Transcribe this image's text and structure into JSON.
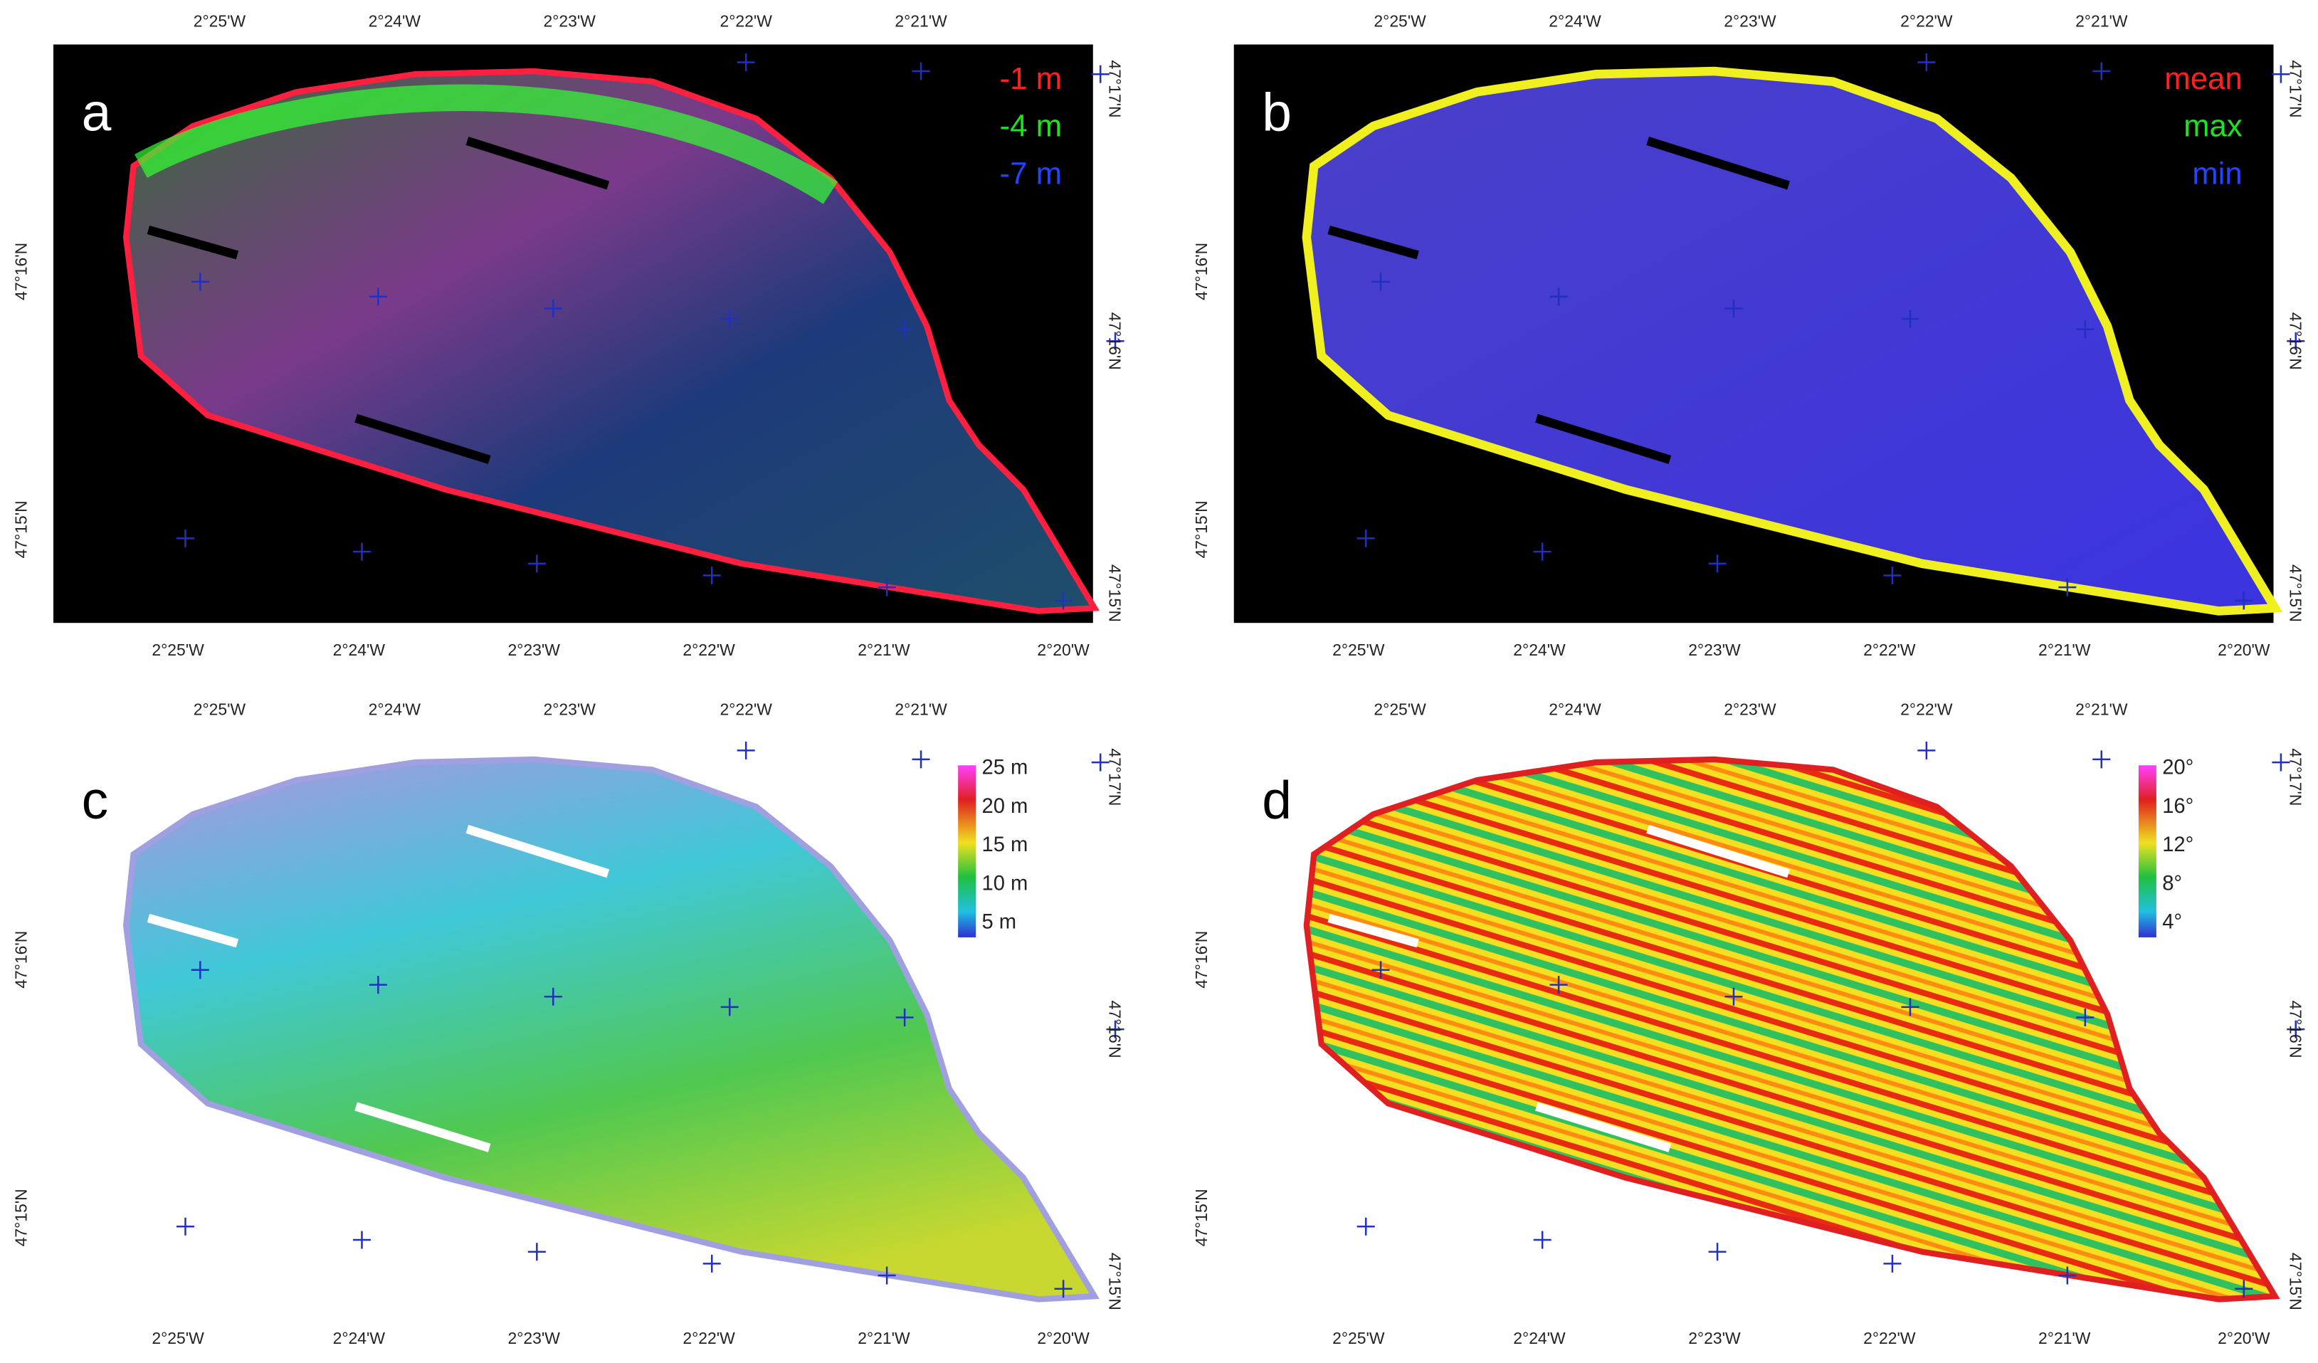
{
  "panels": [
    {
      "label": "a",
      "legend": [
        "-1 m",
        "-4 m",
        "-7 m"
      ]
    },
    {
      "label": "b",
      "legend": [
        "mean",
        "max",
        "min"
      ]
    },
    {
      "label": "c",
      "colorbar": [
        "25 m",
        "20 m",
        "15 m",
        "10 m",
        "5 m"
      ]
    },
    {
      "label": "d",
      "colorbar": [
        "20°",
        "16°",
        "12°",
        "8°",
        "4°"
      ]
    }
  ],
  "axes": {
    "top": [
      "2°25'W",
      "2°24'W",
      "2°23'W",
      "2°22'W",
      "2°21'W"
    ],
    "bottom": [
      "2°25'W",
      "2°24'W",
      "2°23'W",
      "2°22'W",
      "2°21'W",
      "2°20'W"
    ],
    "left": [
      "47°16'N",
      "47°15'N"
    ],
    "right": [
      "47°17'N",
      "47°16'N",
      "47°15'N"
    ]
  }
}
